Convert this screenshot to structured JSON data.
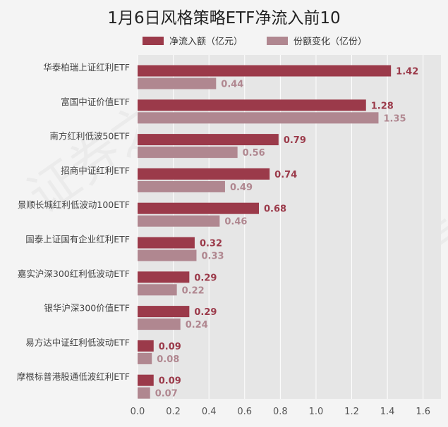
{
  "title": "1月6日风格策略ETF净流入前10",
  "watermark_text": "证券之星",
  "colors": {
    "series1": "#9b3a4a",
    "series2": "#b08790",
    "plot_bg": "#e6e6e6",
    "grid": "#ffffff"
  },
  "chart_data": {
    "type": "bar",
    "orientation": "horizontal",
    "title": "1月6日风格策略ETF净流入前10",
    "legend_position": "top",
    "categories": [
      "华泰柏瑞上证红利ETF",
      "富国中证价值ETF",
      "南方红利低波50ETF",
      "招商中证红利ETF",
      "景顺长城红利低波动100ETF",
      "国泰上证国有企业红利ETF",
      "嘉实沪深300红利低波动ETF",
      "银华沪深300价值ETF",
      "易方达中证红利低波动ETF",
      "摩根标普港股通低波红利ETF"
    ],
    "series": [
      {
        "name": "净流入额（亿元）",
        "values": [
          1.42,
          1.28,
          0.79,
          0.74,
          0.68,
          0.32,
          0.29,
          0.29,
          0.09,
          0.09
        ],
        "labels": [
          "1.42",
          "1.28",
          "0.79",
          "0.74",
          "0.68",
          "0.32",
          "0.29",
          "0.29",
          "0.09",
          "0.09"
        ]
      },
      {
        "name": "份额变化（亿份）",
        "values": [
          0.44,
          1.35,
          0.56,
          0.49,
          0.46,
          0.33,
          0.22,
          0.24,
          0.08,
          0.07
        ],
        "labels": [
          "0.44",
          "1.35",
          "0.56",
          "0.49",
          "0.46",
          "0.33",
          "0.22",
          "0.24",
          "0.08",
          "0.07"
        ]
      }
    ],
    "xlim": [
      0,
      1.7
    ],
    "xticks": [
      "0.0",
      "0.2",
      "0.4",
      "0.6",
      "0.8",
      "1.0",
      "1.2",
      "1.4",
      "1.6"
    ],
    "grid": true
  }
}
